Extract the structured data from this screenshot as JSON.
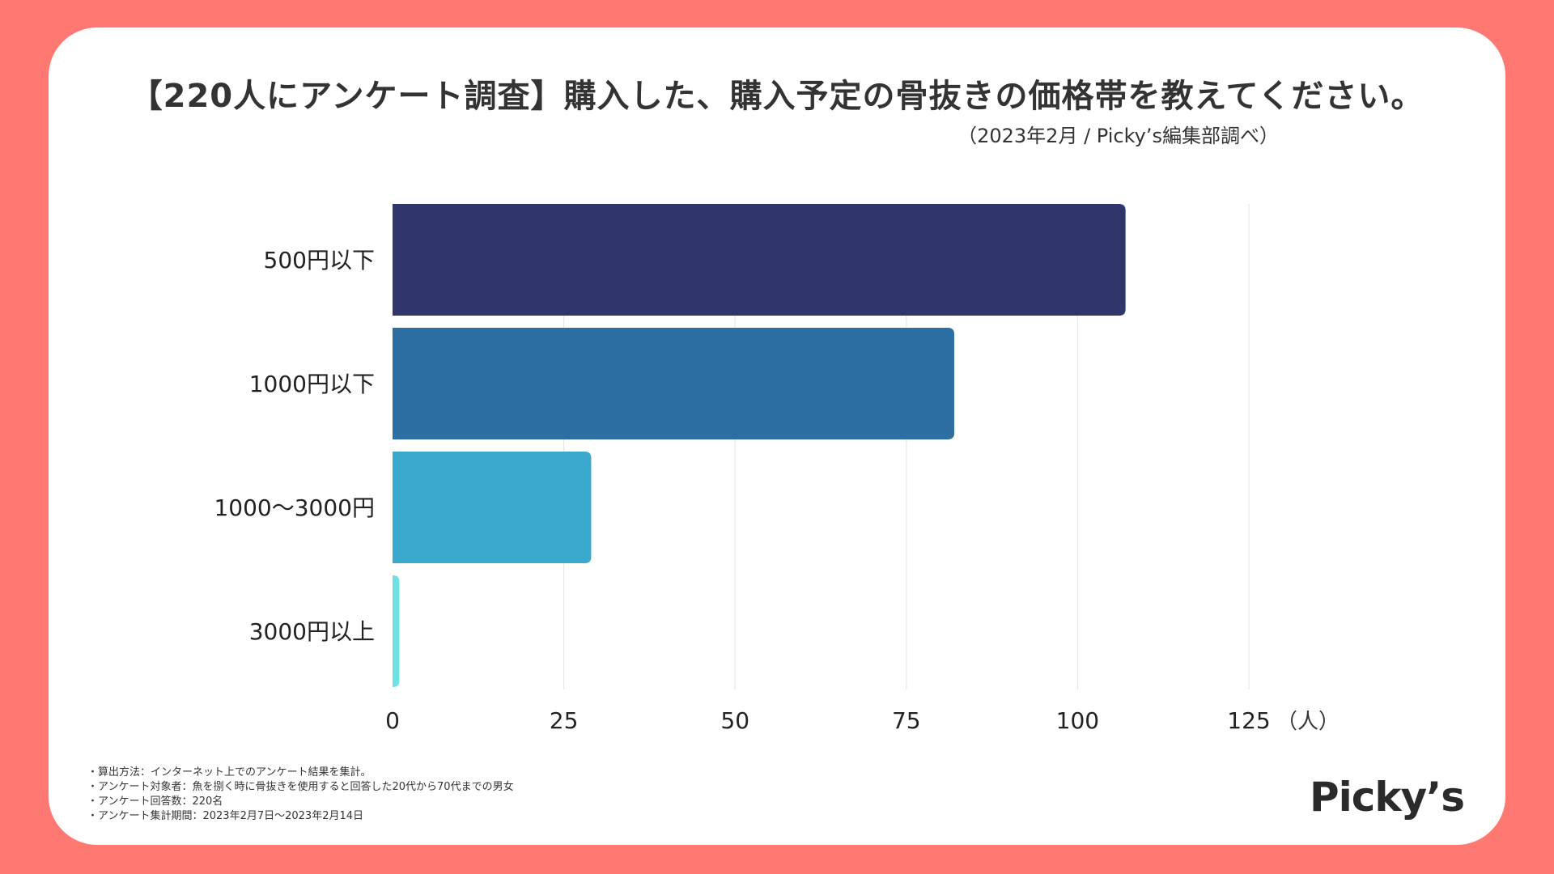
{
  "title": "【220人にアンケート調査】購入した、購入予定の骨抜きの価格帯を教えてください。",
  "subtitle": "（2023年2月 / Picky’s編集部調べ）",
  "chart_data": {
    "type": "bar",
    "orientation": "horizontal",
    "categories": [
      "500円以下",
      "1000円以下",
      "1000〜3000円",
      "3000円以上"
    ],
    "values": [
      107,
      82,
      29,
      1
    ],
    "colors": [
      "#30356B",
      "#2D6EA3",
      "#3AA9CE",
      "#6EE1E4"
    ],
    "xlim": [
      0,
      125
    ],
    "xticks": [
      0,
      25,
      50,
      75,
      100,
      125
    ],
    "xunit": "（人）",
    "grid": true
  },
  "footnotes": [
    "・算出方法：インターネット上でのアンケート結果を集計。",
    "・アンケート対象者：魚を捌く時に骨抜きを使用すると回答した20代から70代までの男女",
    "・アンケート回答数：220名",
    "・アンケート集計期間：2023年2月7日〜2023年2月14日"
  ],
  "logo": "Picky’s"
}
